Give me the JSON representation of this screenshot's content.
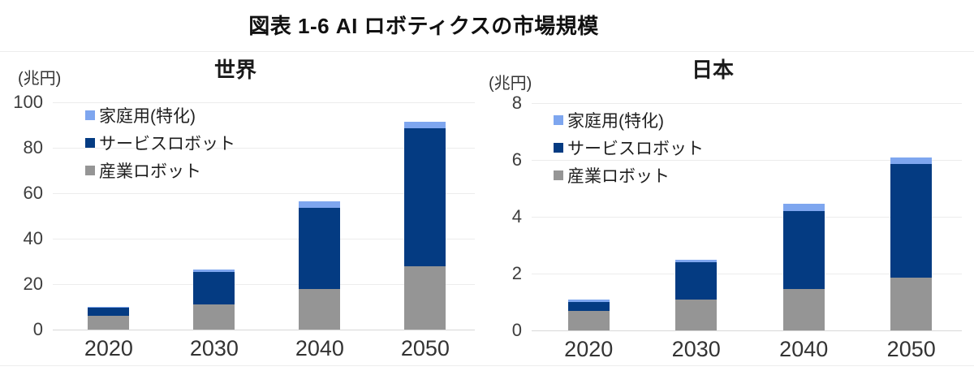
{
  "page": {
    "title": "図表 1-6  AI ロボティクスの市場規模"
  },
  "colors": {
    "household": "#7EA6EF",
    "service": "#043B82",
    "industrial": "#959595",
    "gridline": "#ECECEC",
    "axis_line": "#D8D8D8",
    "tick_text": "#3D3D3D",
    "title_text": "#1A1A1A"
  },
  "legend": [
    {
      "label": "家庭用(特化)",
      "series_key": "household"
    },
    {
      "label": "サービスロボット",
      "series_key": "service"
    },
    {
      "label": "産業ロボット",
      "series_key": "industrial"
    }
  ],
  "chart_data": [
    {
      "type": "bar",
      "stacked": true,
      "title": "世界",
      "ylabel": "(兆円)",
      "xlabel": "",
      "categories": [
        "2020",
        "2030",
        "2040",
        "2050"
      ],
      "series": [
        {
          "name": "産業ロボット",
          "key": "industrial",
          "values": [
            6,
            11,
            18,
            28
          ]
        },
        {
          "name": "サービスロボット",
          "key": "service",
          "values": [
            3.5,
            14.5,
            35.5,
            60.5
          ]
        },
        {
          "name": "家庭用(特化)",
          "key": "household",
          "values": [
            0.5,
            1,
            3,
            3
          ]
        }
      ],
      "totals": [
        10,
        26.5,
        56.5,
        91.5
      ],
      "ylim": [
        0,
        100
      ],
      "yticks": [
        0,
        20,
        40,
        60,
        80,
        100
      ],
      "grid": true,
      "legend_position": "inside-top-left"
    },
    {
      "type": "bar",
      "stacked": true,
      "title": "日本",
      "ylabel": "(兆円)",
      "xlabel": "",
      "categories": [
        "2020",
        "2030",
        "2040",
        "2050"
      ],
      "series": [
        {
          "name": "産業ロボット",
          "key": "industrial",
          "values": [
            0.7,
            1.1,
            1.45,
            1.85
          ]
        },
        {
          "name": "サービスロボット",
          "key": "service",
          "values": [
            0.3,
            1.3,
            2.75,
            4.0
          ]
        },
        {
          "name": "家庭用(特化)",
          "key": "household",
          "values": [
            0.1,
            0.1,
            0.25,
            0.25
          ]
        }
      ],
      "totals": [
        1.1,
        2.5,
        4.45,
        6.1
      ],
      "ylim": [
        0,
        8
      ],
      "yticks": [
        0,
        2,
        4,
        6,
        8
      ],
      "grid": true,
      "legend_position": "inside-top-left"
    }
  ]
}
